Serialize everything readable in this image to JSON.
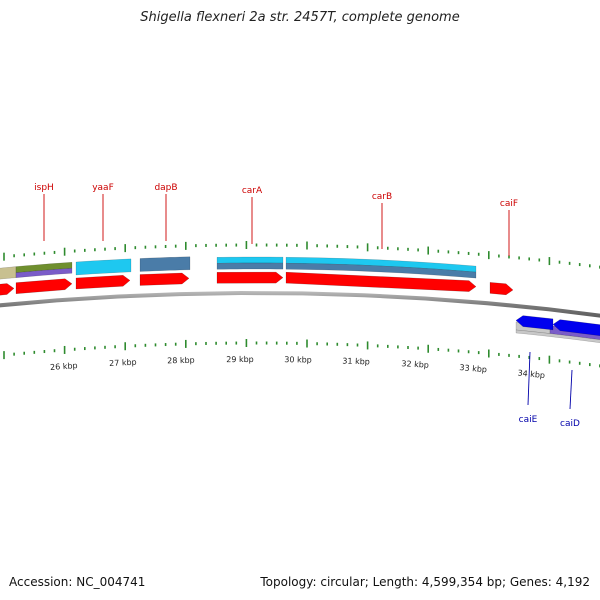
{
  "title": "Shigella flexneri 2a str. 2457T, complete genome",
  "footer": {
    "accession": "Accession: NC_004741",
    "summary": "Topology: circular; Length: 4,599,354 bp; Genes: 4,192"
  },
  "scale_labels": [
    "26 kbp",
    "27 kbp",
    "28 kbp",
    "29 kbp",
    "30 kbp",
    "31 kbp",
    "32 kbp",
    "33 kbp",
    "34 kbp"
  ],
  "genes_forward": [
    "ispH",
    "yaaF",
    "dapB",
    "carA",
    "carB",
    "caiF"
  ],
  "genes_reverse": [
    "caiE",
    "caiD"
  ],
  "colors": {
    "cds_forward": "#ff0000",
    "cds_reverse": "#0000ee",
    "backbone": "#808080",
    "tick": "#2e8b2e",
    "label_forward": "#cc0000",
    "label_reverse": "#0000aa",
    "feature_cyan": "#1ec8f0",
    "feature_steel": "#4a7ca8",
    "feature_olive": "#6f8f2e",
    "feature_tan": "#c8c090",
    "feature_purple": "#7a5cc8",
    "feature_silver": "#c8c8c8"
  }
}
